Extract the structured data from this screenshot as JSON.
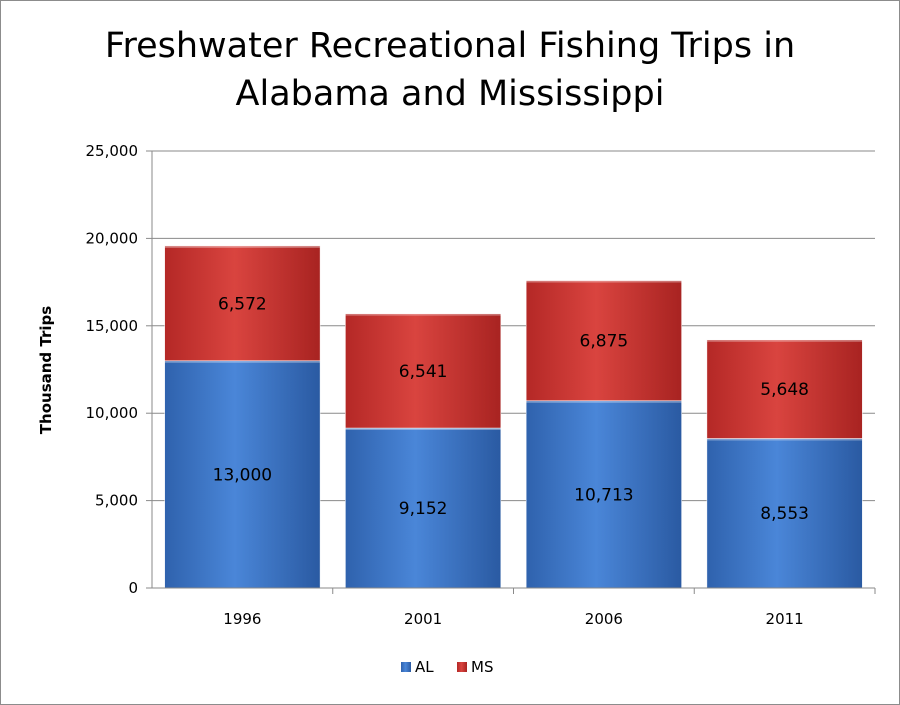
{
  "chart_data": {
    "type": "bar",
    "stacked": true,
    "title": "Freshwater Recreational Fishing Trips in Alabama and Mississippi",
    "title_lines": [
      "Freshwater Recreational Fishing Trips in",
      "Alabama and Mississippi"
    ],
    "xlabel": "",
    "ylabel": "Thousand Trips",
    "categories": [
      "1996",
      "2001",
      "2006",
      "2011"
    ],
    "series": [
      {
        "name": "AL",
        "values": [
          13000,
          9152,
          10713,
          8553
        ],
        "labels": [
          "13,000",
          "9,152",
          "10,713",
          "8,553"
        ],
        "color": "#3b74c6"
      },
      {
        "name": "MS",
        "values": [
          6572,
          6541,
          6875,
          5648
        ],
        "labels": [
          "6,572",
          "6,541",
          "6,875",
          "5,648"
        ],
        "color": "#c9302f"
      }
    ],
    "ylim": [
      0,
      25000
    ],
    "yticks": [
      0,
      5000,
      10000,
      15000,
      20000,
      25000
    ],
    "ytick_labels": [
      "0",
      "5,000",
      "10,000",
      "15,000",
      "20,000",
      "25,000"
    ],
    "grid": true,
    "legend_position": "bottom"
  }
}
